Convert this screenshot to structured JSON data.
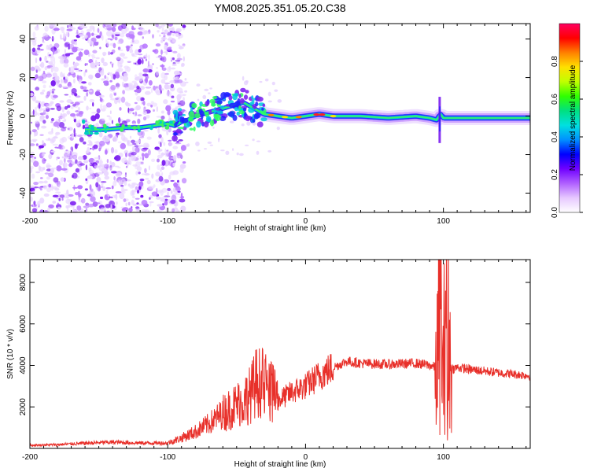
{
  "title": "YM08.2025.351.05.20.C38",
  "chart_data": [
    {
      "type": "heatmap",
      "title": "YM08.2025.351.05.20.C38",
      "xlabel": "Height of straight line (km)",
      "ylabel": "Frequency (Hz)",
      "xlim": [
        -200,
        163
      ],
      "ylim": [
        -50,
        48
      ],
      "xticks": [
        "-200",
        "-100",
        "0",
        "100"
      ],
      "xtick_values": [
        -200,
        -100,
        0,
        100
      ],
      "yticks": [
        "40",
        "20",
        "0",
        "-20",
        "-40"
      ],
      "ytick_values": [
        40,
        20,
        0,
        -20,
        -40
      ],
      "colorbar": {
        "label": "Normalized spectral amplitude",
        "range": [
          0,
          1
        ],
        "ticks": [
          "0.0",
          "0.2",
          "0.4",
          "0.6",
          "0.8"
        ],
        "tick_values": [
          0.0,
          0.2,
          0.4,
          0.6,
          0.8
        ],
        "colors": [
          "#ffffff",
          "#e6c8ff",
          "#b060ff",
          "#7000ff",
          "#0000ff",
          "#0090ff",
          "#00e0e0",
          "#00e080",
          "#30ff00",
          "#c0ff00",
          "#ffe000",
          "#ff8000",
          "#ff0000",
          "#ff0060"
        ]
      },
      "ridge_x": [
        -160,
        -145,
        -130,
        -120,
        -110,
        -100,
        -95,
        -90,
        -85,
        -80,
        -75,
        -70,
        -65,
        -60,
        -55,
        -50,
        -45,
        -40,
        -35,
        -30,
        -20,
        -10,
        0,
        10,
        20,
        40,
        60,
        80,
        90,
        95,
        98,
        100,
        105,
        120,
        140,
        163
      ],
      "ridge_y": [
        -7,
        -7,
        -6,
        -6,
        -5,
        -4,
        -5,
        -3,
        -2,
        0,
        1,
        2,
        3,
        4,
        5,
        6,
        7,
        5,
        3,
        1,
        0,
        -1,
        0,
        1,
        0,
        0,
        -1,
        0,
        -1,
        -2,
        1,
        -1,
        -1,
        -1,
        -1,
        -1
      ]
    },
    {
      "type": "line",
      "xlabel": "Height of straight line (km)",
      "ylabel": "SNR (10 * v/v)",
      "xlim": [
        -200,
        163
      ],
      "ylim": [
        0,
        9100
      ],
      "xticks": [
        "-200",
        "-100",
        "0",
        "100"
      ],
      "xtick_values": [
        -200,
        -100,
        0,
        100
      ],
      "yticks": [
        "8000",
        "6000",
        "4000",
        "2000"
      ],
      "ytick_values": [
        8000,
        6000,
        4000,
        2000
      ],
      "series": [
        {
          "name": "SNR",
          "color": "#e8302a",
          "x": [
            -200,
            -180,
            -160,
            -140,
            -120,
            -100,
            -90,
            -80,
            -70,
            -60,
            -50,
            -40,
            -35,
            -30,
            -25,
            -20,
            -10,
            0,
            10,
            20,
            30,
            40,
            60,
            80,
            90,
            95,
            98,
            100,
            102,
            103,
            104,
            105,
            110,
            120,
            140,
            163
          ],
          "y": [
            150,
            180,
            250,
            300,
            260,
            260,
            500,
            800,
            1200,
            1700,
            2100,
            2600,
            3300,
            2900,
            2600,
            2300,
            2700,
            3000,
            3500,
            3900,
            4200,
            4100,
            4050,
            4100,
            4000,
            3900,
            6500,
            3200,
            9000,
            400,
            7500,
            3800,
            3900,
            3800,
            3650,
            3500
          ]
        }
      ]
    }
  ]
}
